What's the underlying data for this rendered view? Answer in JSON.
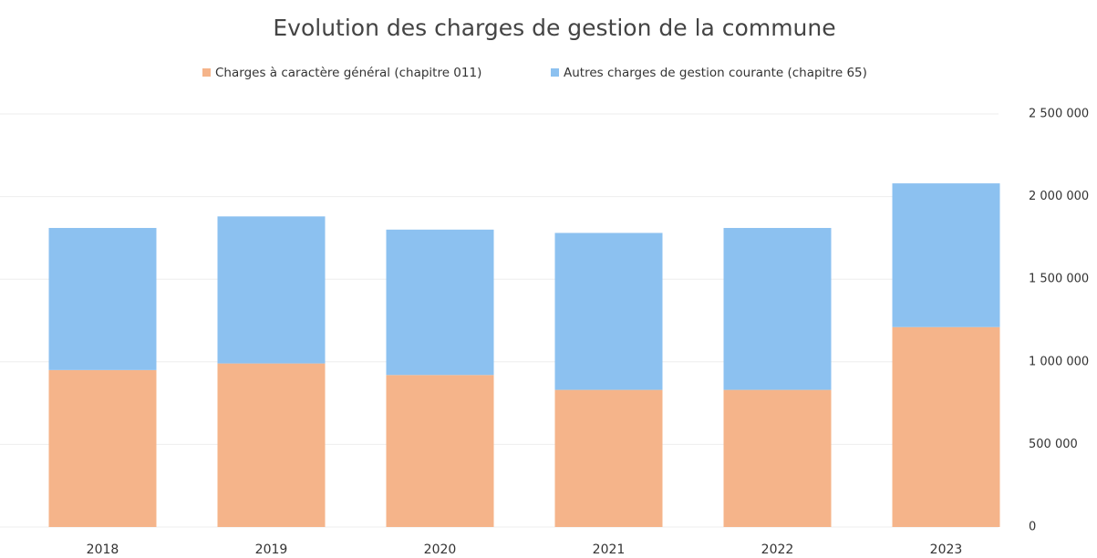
{
  "chart_data": {
    "type": "stacked_bar",
    "title": "Evolution des charges de gestion de la commune",
    "categories": [
      "2018",
      "2019",
      "2020",
      "2021",
      "2022",
      "2023"
    ],
    "series": [
      {
        "name": "Charges à caractère général (chapitre 011)",
        "color": "#f5b48a",
        "values": [
          950000,
          990000,
          920000,
          830000,
          830000,
          1210000
        ]
      },
      {
        "name": "Autres charges de gestion courante (chapitre 65)",
        "color": "#8cc1f0",
        "values": [
          860000,
          890000,
          880000,
          950000,
          980000,
          870000
        ]
      }
    ],
    "ylim": [
      0,
      2500000
    ],
    "yticks": [
      0,
      {
        "value": 500000,
        "label": "500 000"
      },
      {
        "value": 1000000,
        "label": "1 000 000"
      },
      {
        "value": 1500000,
        "label": "1 500 000"
      },
      {
        "value": 2000000,
        "label": "2 000 000"
      },
      {
        "value": 2500000,
        "label": "2 500 000"
      }
    ],
    "grid": true,
    "legend": "top",
    "y_axis_side": "right"
  }
}
